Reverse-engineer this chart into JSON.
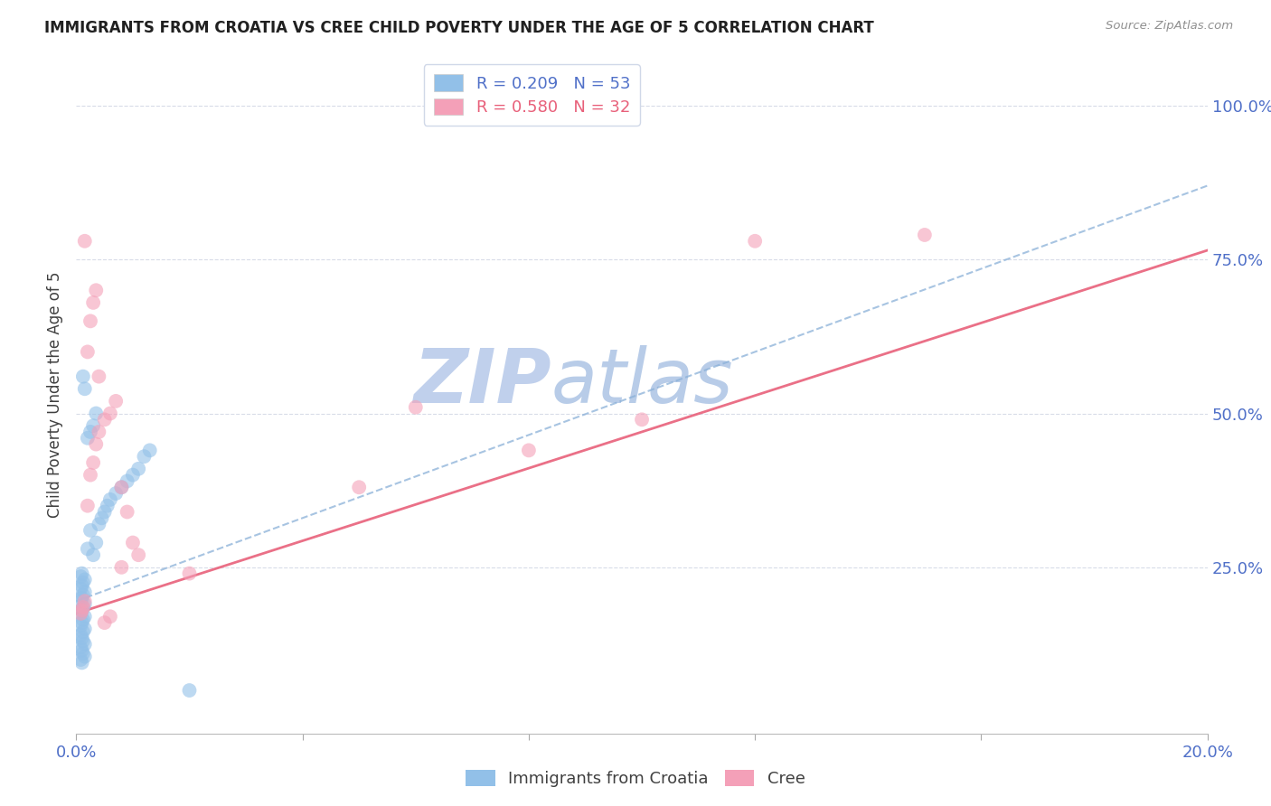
{
  "title": "IMMIGRANTS FROM CROATIA VS CREE CHILD POVERTY UNDER THE AGE OF 5 CORRELATION CHART",
  "source": "Source: ZipAtlas.com",
  "ylabel": "Child Poverty Under the Age of 5",
  "xlim": [
    0.0,
    0.2
  ],
  "ylim": [
    -0.02,
    1.08
  ],
  "yticks": [
    0.25,
    0.5,
    0.75,
    1.0
  ],
  "ytick_labels": [
    "25.0%",
    "50.0%",
    "75.0%",
    "100.0%"
  ],
  "xticks": [
    0.0,
    0.04,
    0.08,
    0.12,
    0.16,
    0.2
  ],
  "xtick_labels": [
    "0.0%",
    "",
    "",
    "",
    "",
    "20.0%"
  ],
  "watermark": "ZIPatlas",
  "blue_r": "R = 0.209",
  "blue_n": "N = 53",
  "pink_r": "R = 0.580",
  "pink_n": "N = 32",
  "blue_color": "#92c0e8",
  "pink_color": "#f4a0b8",
  "blue_line_color": "#8ab0d8",
  "pink_line_color": "#e8607a",
  "grid_color": "#d8dce8",
  "title_color": "#202020",
  "axis_label_color": "#5070c8",
  "watermark_color_zip": "#c0d0ec",
  "watermark_color_atlas": "#b8cce8",
  "background_color": "#ffffff",
  "legend_edge_color": "#d0d8e8",
  "blue_scatter_x": [
    0.0008,
    0.001,
    0.0012,
    0.0015,
    0.0008,
    0.001,
    0.0012,
    0.0015,
    0.0008,
    0.001,
    0.0012,
    0.0015,
    0.0008,
    0.001,
    0.0012,
    0.0015,
    0.0008,
    0.001,
    0.0012,
    0.0015,
    0.0008,
    0.001,
    0.0012,
    0.0015,
    0.0008,
    0.001,
    0.0012,
    0.0015,
    0.0008,
    0.001,
    0.002,
    0.0025,
    0.003,
    0.0035,
    0.004,
    0.0045,
    0.005,
    0.0055,
    0.006,
    0.007,
    0.008,
    0.009,
    0.01,
    0.011,
    0.012,
    0.013,
    0.002,
    0.0025,
    0.003,
    0.0035,
    0.0015,
    0.0012,
    0.02
  ],
  "blue_scatter_y": [
    0.175,
    0.18,
    0.185,
    0.19,
    0.195,
    0.2,
    0.205,
    0.21,
    0.215,
    0.22,
    0.225,
    0.23,
    0.235,
    0.24,
    0.165,
    0.17,
    0.155,
    0.16,
    0.145,
    0.15,
    0.14,
    0.135,
    0.13,
    0.125,
    0.12,
    0.115,
    0.11,
    0.105,
    0.1,
    0.095,
    0.28,
    0.31,
    0.27,
    0.29,
    0.32,
    0.33,
    0.34,
    0.35,
    0.36,
    0.37,
    0.38,
    0.39,
    0.4,
    0.41,
    0.43,
    0.44,
    0.46,
    0.47,
    0.48,
    0.5,
    0.54,
    0.56,
    0.05
  ],
  "pink_scatter_x": [
    0.0008,
    0.001,
    0.0012,
    0.0015,
    0.002,
    0.0025,
    0.003,
    0.0035,
    0.004,
    0.005,
    0.006,
    0.007,
    0.008,
    0.009,
    0.01,
    0.011,
    0.0015,
    0.002,
    0.0025,
    0.003,
    0.0035,
    0.004,
    0.005,
    0.006,
    0.02,
    0.05,
    0.08,
    0.1,
    0.12,
    0.15,
    0.06,
    0.008
  ],
  "pink_scatter_y": [
    0.175,
    0.18,
    0.185,
    0.195,
    0.35,
    0.4,
    0.42,
    0.45,
    0.47,
    0.49,
    0.5,
    0.52,
    0.38,
    0.34,
    0.29,
    0.27,
    0.78,
    0.6,
    0.65,
    0.68,
    0.7,
    0.56,
    0.16,
    0.17,
    0.24,
    0.38,
    0.44,
    0.49,
    0.78,
    0.79,
    0.51,
    0.25
  ],
  "blue_line_x0": 0.0,
  "blue_line_x1": 0.2,
  "blue_line_y0": 0.195,
  "blue_line_y1": 0.87,
  "pink_line_x0": 0.0,
  "pink_line_x1": 0.2,
  "pink_line_y0": 0.175,
  "pink_line_y1": 0.765
}
